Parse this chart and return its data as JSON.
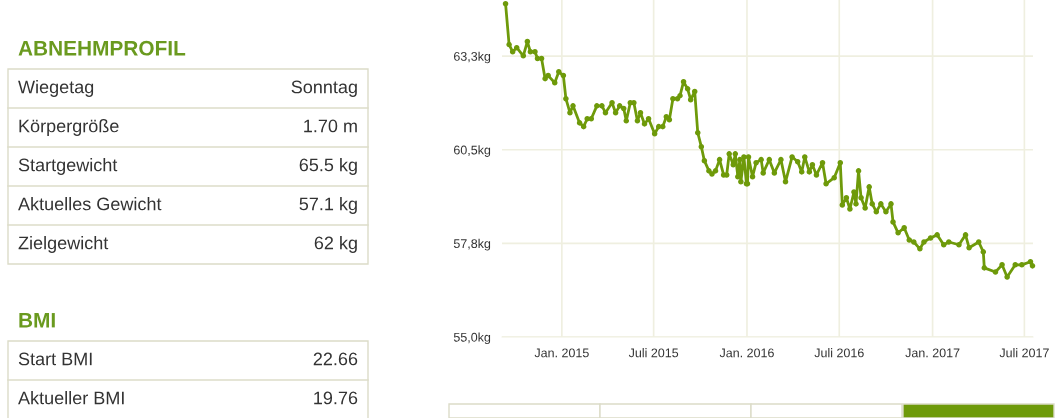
{
  "chart_data": [
    {
      "type": "other",
      "title": "ABNEHMPROFIL",
      "color": "#6a9a1f",
      "annotations": [
        "Wiegetag",
        "Sonntag",
        "Körpergröße",
        "1.70 m",
        "Startgewicht",
        "65.5 kg",
        "Aktuelles Gewicht",
        "57.1 kg",
        "Zielgewicht",
        "62 kg"
      ]
    },
    {
      "type": "other",
      "title": "BMI",
      "color": "#6a9a1f",
      "annotations": [
        "Start BMI",
        "22.66",
        "Aktueller BMI",
        "19.76"
      ]
    },
    {
      "type": "line",
      "marker": "circle",
      "grid": true,
      "xlim": [
        "2014-09-05",
        "2017-07-18"
      ],
      "ylim": [
        55,
        64.9
      ],
      "xticks": [
        {
          "value": "2015-01-01",
          "label": "Jan. 2015"
        },
        {
          "value": "2015-07-01",
          "label": "Juli 2015"
        },
        {
          "value": "2016-01-01",
          "label": "Jan. 2016"
        },
        {
          "value": "2016-07-01",
          "label": "Juli 2016"
        },
        {
          "value": "2017-01-01",
          "label": "Jan. 2017"
        },
        {
          "value": "2017-07-01",
          "label": "Juli 2017"
        }
      ],
      "yticks": [
        {
          "value": 55,
          "label": "55,0kg"
        },
        {
          "value": 57.75,
          "label": "57,8kg"
        },
        {
          "value": 60.5,
          "label": "60,5kg"
        },
        {
          "value": 63.25,
          "label": "63,3kg"
        }
      ],
      "series": [
        {
          "color": "#6e9a0a",
          "x": [
            "2014-09-12",
            "2014-09-19",
            "2014-09-26",
            "2014-10-04",
            "2014-10-17",
            "2014-10-25",
            "2014-10-31",
            "2014-11-09",
            "2014-11-14",
            "2014-11-22",
            "2014-11-29",
            "2014-12-05",
            "2014-12-18",
            "2014-12-26",
            "2015-01-04",
            "2015-01-09",
            "2015-01-17",
            "2015-01-23",
            "2015-02-05",
            "2015-02-13",
            "2015-02-20",
            "2015-02-28",
            "2015-03-11",
            "2015-03-21",
            "2015-03-28",
            "2015-04-10",
            "2015-04-17",
            "2015-04-25",
            "2015-05-03",
            "2015-05-08",
            "2015-05-16",
            "2015-05-23",
            "2015-05-30",
            "2015-06-05",
            "2015-06-13",
            "2015-06-21",
            "2015-07-03",
            "2015-07-11",
            "2015-07-19",
            "2015-07-26",
            "2015-08-01",
            "2015-08-08",
            "2015-08-17",
            "2015-08-22",
            "2015-08-29",
            "2015-09-06",
            "2015-09-12",
            "2015-09-20",
            "2015-09-26",
            "2015-10-03",
            "2015-10-09",
            "2015-10-18",
            "2015-10-24",
            "2015-10-31",
            "2015-11-08",
            "2015-11-16",
            "2015-11-22",
            "2015-11-27",
            "2015-12-05",
            "2015-12-09",
            "2015-12-14",
            "2015-12-18",
            "2015-12-20",
            "2015-12-26",
            "2015-12-31",
            "2016-01-02",
            "2016-01-04",
            "2016-01-12",
            "2016-01-19",
            "2016-01-29",
            "2016-02-02",
            "2016-02-14",
            "2016-02-24",
            "2016-03-08",
            "2016-03-17",
            "2016-03-30",
            "2016-04-10",
            "2016-04-18",
            "2016-04-24",
            "2016-05-03",
            "2016-05-09",
            "2016-05-17",
            "2016-05-29",
            "2016-06-05",
            "2016-06-21",
            "2016-07-03",
            "2016-07-07",
            "2016-07-15",
            "2016-07-22",
            "2016-07-30",
            "2016-08-03",
            "2016-08-08",
            "2016-08-13",
            "2016-08-21",
            "2016-08-29",
            "2016-09-04",
            "2016-09-12",
            "2016-09-21",
            "2016-10-01",
            "2016-10-11",
            "2016-10-15",
            "2016-10-25",
            "2016-11-06",
            "2016-11-16",
            "2016-11-25",
            "2016-12-07",
            "2016-12-15",
            "2016-12-28",
            "2017-01-10",
            "2017-01-23",
            "2017-02-02",
            "2017-02-22",
            "2017-03-07",
            "2017-03-14",
            "2017-04-02",
            "2017-04-11",
            "2017-04-13",
            "2017-05-05",
            "2017-05-18",
            "2017-05-28",
            "2017-06-13",
            "2017-06-26",
            "2017-07-13",
            "2017-07-17"
          ],
          "values": [
            64.79,
            63.59,
            63.38,
            63.5,
            63.26,
            63.68,
            63.38,
            63.38,
            63.18,
            63.18,
            62.59,
            62.68,
            62.47,
            62.79,
            62.68,
            62.0,
            61.59,
            61.79,
            61.29,
            61.18,
            61.41,
            61.41,
            61.79,
            61.79,
            61.59,
            61.88,
            61.59,
            61.79,
            61.71,
            61.35,
            61.88,
            61.88,
            61.35,
            61.59,
            61.26,
            61.41,
            60.97,
            61.18,
            61.18,
            61.47,
            61.38,
            62.0,
            62.0,
            62.09,
            62.5,
            62.29,
            61.97,
            62.21,
            61.0,
            60.59,
            60.18,
            59.88,
            59.79,
            59.88,
            60.21,
            59.76,
            59.76,
            60.38,
            60.06,
            60.38,
            59.71,
            60.21,
            59.56,
            60.29,
            59.5,
            59.5,
            60.29,
            59.71,
            60.12,
            60.21,
            59.82,
            60.21,
            59.82,
            60.21,
            59.56,
            60.29,
            60.15,
            59.85,
            60.29,
            59.85,
            60.06,
            59.76,
            60.12,
            59.5,
            59.68,
            60.12,
            58.88,
            59.09,
            58.76,
            59.26,
            58.91,
            59.88,
            59.09,
            58.79,
            59.41,
            58.91,
            58.68,
            58.91,
            58.68,
            58.91,
            58.38,
            58.06,
            58.21,
            57.85,
            57.79,
            57.59,
            57.79,
            57.91,
            58.0,
            57.71,
            57.79,
            57.71,
            58.0,
            57.62,
            57.79,
            57.5,
            57.03,
            56.91,
            57.12,
            56.76,
            57.12,
            57.12,
            57.21,
            57.09
          ]
        }
      ]
    }
  ]
}
